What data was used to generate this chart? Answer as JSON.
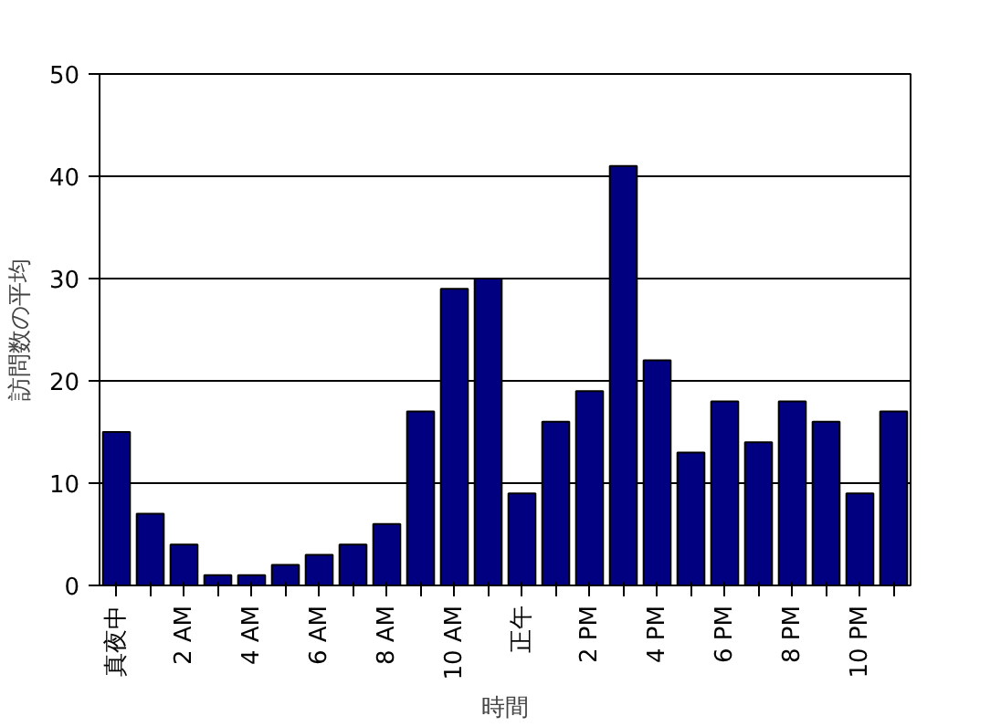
{
  "chart_data": {
    "type": "bar",
    "xlabel": "時間",
    "ylabel": "訪問数の平均",
    "categories": [
      "真夜中",
      null,
      "2 AM",
      null,
      "4 AM",
      null,
      "6 AM",
      null,
      "8 AM",
      null,
      "10 AM",
      null,
      "正午",
      null,
      "2 PM",
      null,
      "4 PM",
      null,
      "6 PM",
      null,
      "8 PM",
      null,
      "10 PM",
      null
    ],
    "values": [
      15,
      7,
      4,
      1,
      1,
      2,
      3,
      4,
      6,
      17,
      29,
      30,
      9,
      16,
      19,
      41,
      22,
      13,
      18,
      14,
      18,
      16,
      9,
      17
    ],
    "color": "#000080",
    "ylim": [
      0,
      50
    ],
    "yticks": [
      0,
      10,
      20,
      30,
      40,
      50
    ],
    "grid": "y"
  }
}
